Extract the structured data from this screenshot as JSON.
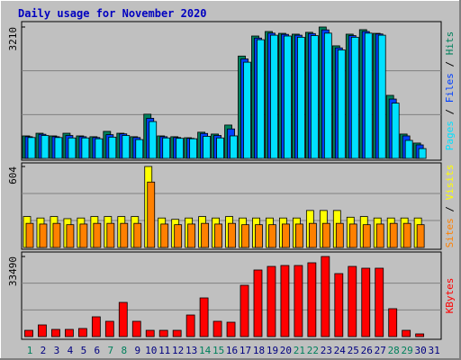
{
  "title": "Daily usage for November 2020",
  "legend_separator": " / ",
  "chart_data": [
    {
      "type": "bar",
      "ylim": [
        0,
        3210
      ],
      "yticks": [
        3210
      ],
      "series": [
        {
          "name": "Hits",
          "color": "#00805c",
          "values": [
            550,
            615,
            550,
            615,
            550,
            530,
            660,
            615,
            530,
            1080,
            550,
            530,
            505,
            640,
            595,
            815,
            2500,
            2990,
            3100,
            3055,
            3035,
            3080,
            3210,
            2750,
            3035,
            3145,
            3055,
            1540,
            595,
            375,
            0
          ]
        },
        {
          "name": "Files",
          "color": "#0040ff",
          "values": [
            530,
            590,
            530,
            560,
            530,
            510,
            580,
            600,
            510,
            980,
            530,
            510,
            490,
            610,
            560,
            720,
            2430,
            2940,
            3060,
            3030,
            3010,
            3050,
            3140,
            2700,
            3000,
            3100,
            3040,
            1450,
            550,
            330,
            0
          ]
        },
        {
          "name": "Pages",
          "color": "#00e0ff",
          "values": [
            510,
            560,
            510,
            500,
            500,
            480,
            520,
            560,
            460,
            900,
            500,
            490,
            480,
            540,
            500,
            550,
            2350,
            2900,
            3010,
            2990,
            2960,
            3000,
            3060,
            2650,
            2960,
            3060,
            3010,
            1350,
            440,
            240,
            0
          ]
        }
      ]
    },
    {
      "type": "bar",
      "ylim": [
        0,
        604
      ],
      "yticks": [
        604
      ],
      "series": [
        {
          "name": "Visits",
          "color": "#ffff00",
          "values": [
            231,
            220,
            231,
            215,
            220,
            231,
            231,
            231,
            231,
            604,
            220,
            210,
            220,
            231,
            220,
            231,
            220,
            220,
            220,
            220,
            220,
            276,
            276,
            276,
            226,
            231,
            220,
            220,
            220,
            220,
            0
          ]
        },
        {
          "name": "Sites",
          "color": "#ff8000",
          "values": [
            180,
            175,
            180,
            170,
            175,
            180,
            180,
            180,
            180,
            488,
            175,
            170,
            175,
            180,
            175,
            180,
            170,
            170,
            170,
            175,
            175,
            180,
            180,
            180,
            175,
            170,
            175,
            180,
            180,
            170,
            0
          ]
        }
      ]
    },
    {
      "type": "bar",
      "ylim": [
        0,
        33490
      ],
      "yticks": [
        33490
      ],
      "categories": [
        "1",
        "2",
        "3",
        "4",
        "5",
        "6",
        "7",
        "8",
        "9",
        "10",
        "11",
        "12",
        "13",
        "14",
        "15",
        "16",
        "17",
        "18",
        "19",
        "20",
        "21",
        "22",
        "23",
        "24",
        "25",
        "26",
        "27",
        "28",
        "29",
        "30",
        "31"
      ],
      "category_colors": [
        "#00805c",
        "#000080",
        "#000080",
        "#000080",
        "#000080",
        "#000080",
        "#00805c",
        "#00805c",
        "#000080",
        "#000080",
        "#000080",
        "#000080",
        "#000080",
        "#00805c",
        "#00805c",
        "#000080",
        "#000080",
        "#000080",
        "#000080",
        "#000080",
        "#00805c",
        "#00805c",
        "#000080",
        "#000080",
        "#000080",
        "#000080",
        "#000080",
        "#00805c",
        "#00805c",
        "#000080",
        "#000080"
      ],
      "series": [
        {
          "name": "KBytes",
          "color": "#ff0000",
          "values": [
            2630,
            4890,
            3010,
            3010,
            3390,
            8280,
            6400,
            14300,
            6400,
            2630,
            2630,
            2630,
            9030,
            16180,
            6400,
            6020,
            21450,
            27850,
            29350,
            29730,
            29730,
            30860,
            33490,
            26340,
            29350,
            28600,
            28600,
            11670,
            2630,
            1130,
            0
          ]
        }
      ]
    }
  ]
}
